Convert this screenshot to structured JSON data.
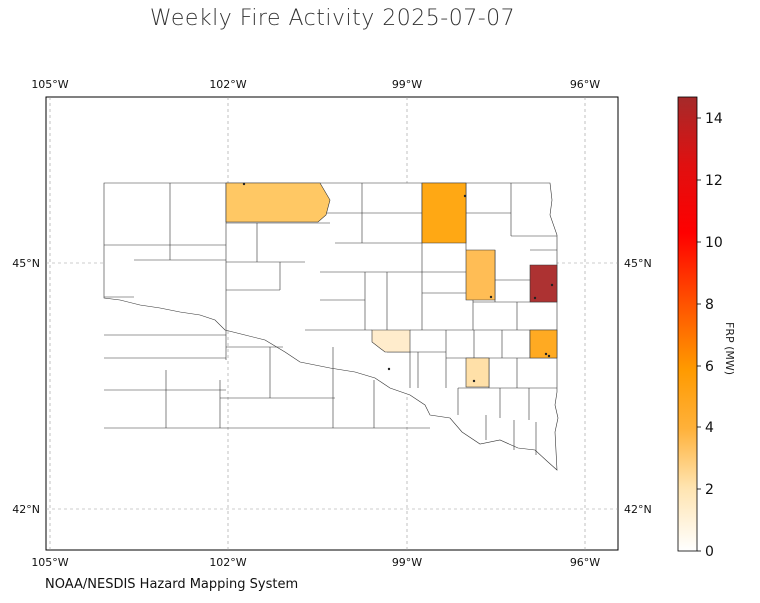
{
  "title": "Weekly Fire Activity 2025-07-07",
  "source": "NOAA/NESDIS Hazard Mapping System",
  "colorbar": {
    "label": "FRP (MW)",
    "ticks": [
      "0",
      "2",
      "4",
      "6",
      "8",
      "10",
      "12",
      "14"
    ],
    "range": [
      0,
      14.7
    ],
    "colors": [
      "#fff8e6",
      "#ffd27a",
      "#ffa500",
      "#ff2200",
      "#ff0000",
      "#a52a2a"
    ]
  },
  "map": {
    "lon_ticks": [
      "105°W",
      "102°W",
      "99°W",
      "96°W"
    ],
    "lat_ticks": [
      "45°N",
      "42°N"
    ],
    "grid": true,
    "region": "South Dakota counties",
    "county_fills": {
      "none": "#ffffff",
      "low": "#ffeccc",
      "light": "#ffe0a8",
      "medium_light": "#ffc864",
      "medium": "#ffbd55",
      "orange": "#ffa814",
      "bright_orange": "#ffaa22",
      "high": "#ad3232"
    }
  }
}
